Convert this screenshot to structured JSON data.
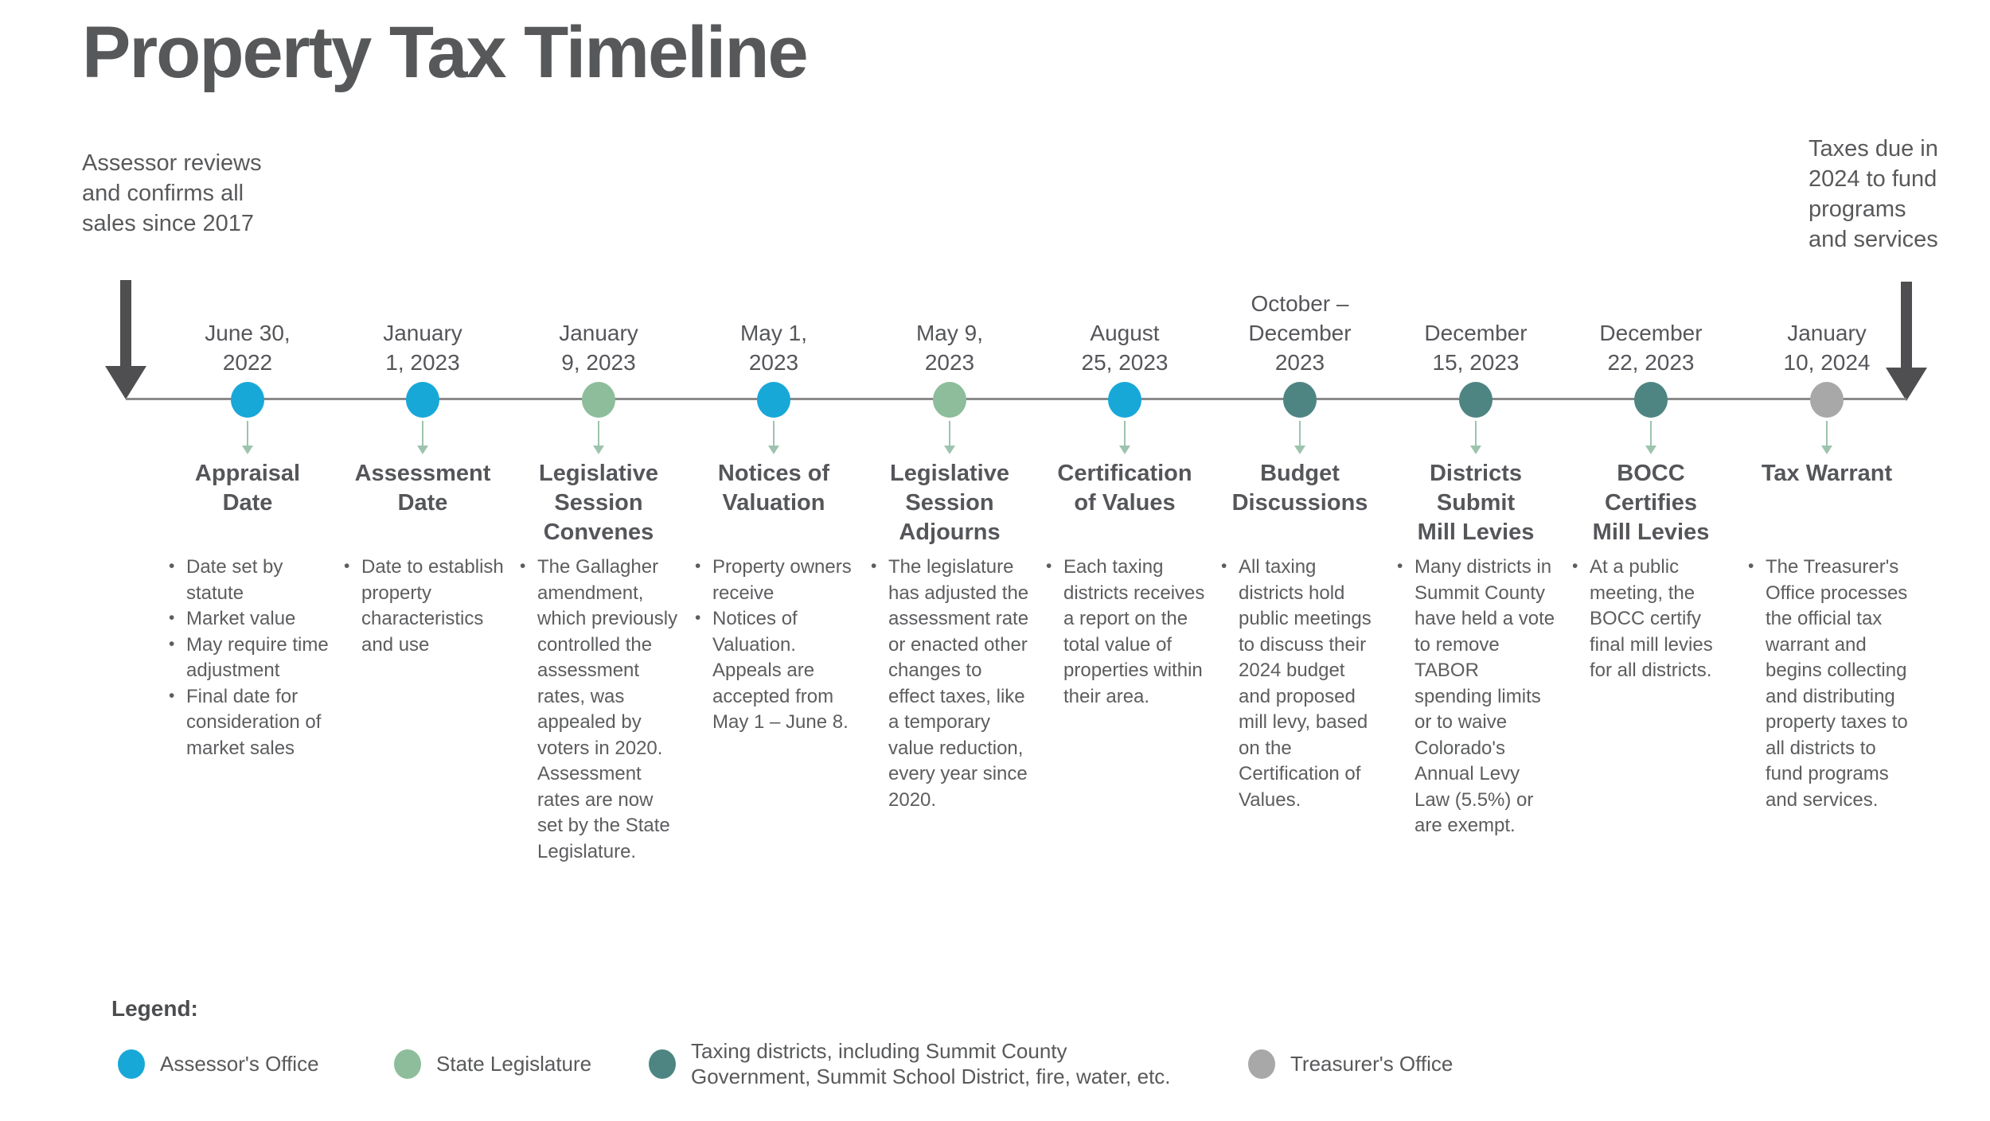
{
  "title": "Property Tax Timeline",
  "annotations": {
    "start": "Assessor reviews\nand confirms all\nsales since 2017",
    "end": "Taxes due in\n2024 to fund\nprograms\nand services"
  },
  "colors": {
    "assessor": "#18a8d8",
    "legislature": "#8dbd9b",
    "districts": "#4e8583",
    "treasurer": "#a8a8a8",
    "big_arrow": "#4f4f51",
    "axis_line": "#8a8a8a",
    "connector": "#9dc3af"
  },
  "events": [
    {
      "date": "June 30,\n2022",
      "title": "Appraisal\nDate",
      "actor": "assessor",
      "bullets": [
        "Date set by statute",
        "Market value",
        "May require time adjustment",
        "Final date for consideration of market sales"
      ]
    },
    {
      "date": "January\n1, 2023",
      "title": "Assessment\nDate",
      "actor": "assessor",
      "bullets": [
        "Date to establish property characteristics and use"
      ]
    },
    {
      "date": "January\n9, 2023",
      "title": "Legislative\nSession\nConvenes",
      "actor": "legislature",
      "bullets": [
        "The Gallagher amendment, which previously controlled the assessment rates, was appealed by voters in 2020. Assessment rates are now set by the State Legislature."
      ]
    },
    {
      "date": "May 1,\n2023",
      "title": "Notices of\nValuation",
      "actor": "assessor",
      "bullets": [
        "Property owners receive",
        "Notices of Valuation. Appeals are accepted from May 1 – June 8."
      ]
    },
    {
      "date": "May 9,\n2023",
      "title": "Legislative\nSession\nAdjourns",
      "actor": "legislature",
      "bullets": [
        "The legislature has adjusted the assessment rate or enacted other changes to effect taxes, like a temporary value reduction, every year since 2020."
      ]
    },
    {
      "date": "August\n25, 2023",
      "title": "Certification\nof Values",
      "actor": "assessor",
      "bullets": [
        "Each taxing districts receives a report on the total value of properties within their area."
      ]
    },
    {
      "date": "October –\nDecember\n2023",
      "title": "Budget\nDiscussions",
      "actor": "districts",
      "bullets": [
        "All taxing districts hold public meetings to discuss their 2024 budget and proposed mill levy, based on the Certification of Values."
      ]
    },
    {
      "date": "December\n15, 2023",
      "title": "Districts\nSubmit\nMill Levies",
      "actor": "districts",
      "bullets": [
        "Many districts in Summit County have held a vote to remove TABOR spending limits or to waive Colorado's Annual Levy Law (5.5%) or are exempt."
      ]
    },
    {
      "date": "December\n22, 2023",
      "title": "BOCC\nCertifies\nMill Levies",
      "actor": "districts",
      "bullets": [
        "At a public meeting, the BOCC certify final mill levies for all districts."
      ]
    },
    {
      "date": "January\n10, 2024",
      "title": "Tax Warrant",
      "actor": "treasurer",
      "bullets": [
        "The Treasurer's Office processes the official tax warrant and begins collecting and distributing property taxes to all districts to fund programs and services."
      ]
    }
  ],
  "legend": {
    "label": "Legend:",
    "items": [
      {
        "label": "Assessor's Office",
        "actor": "assessor"
      },
      {
        "label": "State Legislature",
        "actor": "legislature"
      },
      {
        "label": "Taxing districts, including Summit County\nGovernment, Summit School District, fire, water, etc.",
        "actor": "districts"
      },
      {
        "label": "Treasurer's Office",
        "actor": "treasurer"
      }
    ]
  }
}
